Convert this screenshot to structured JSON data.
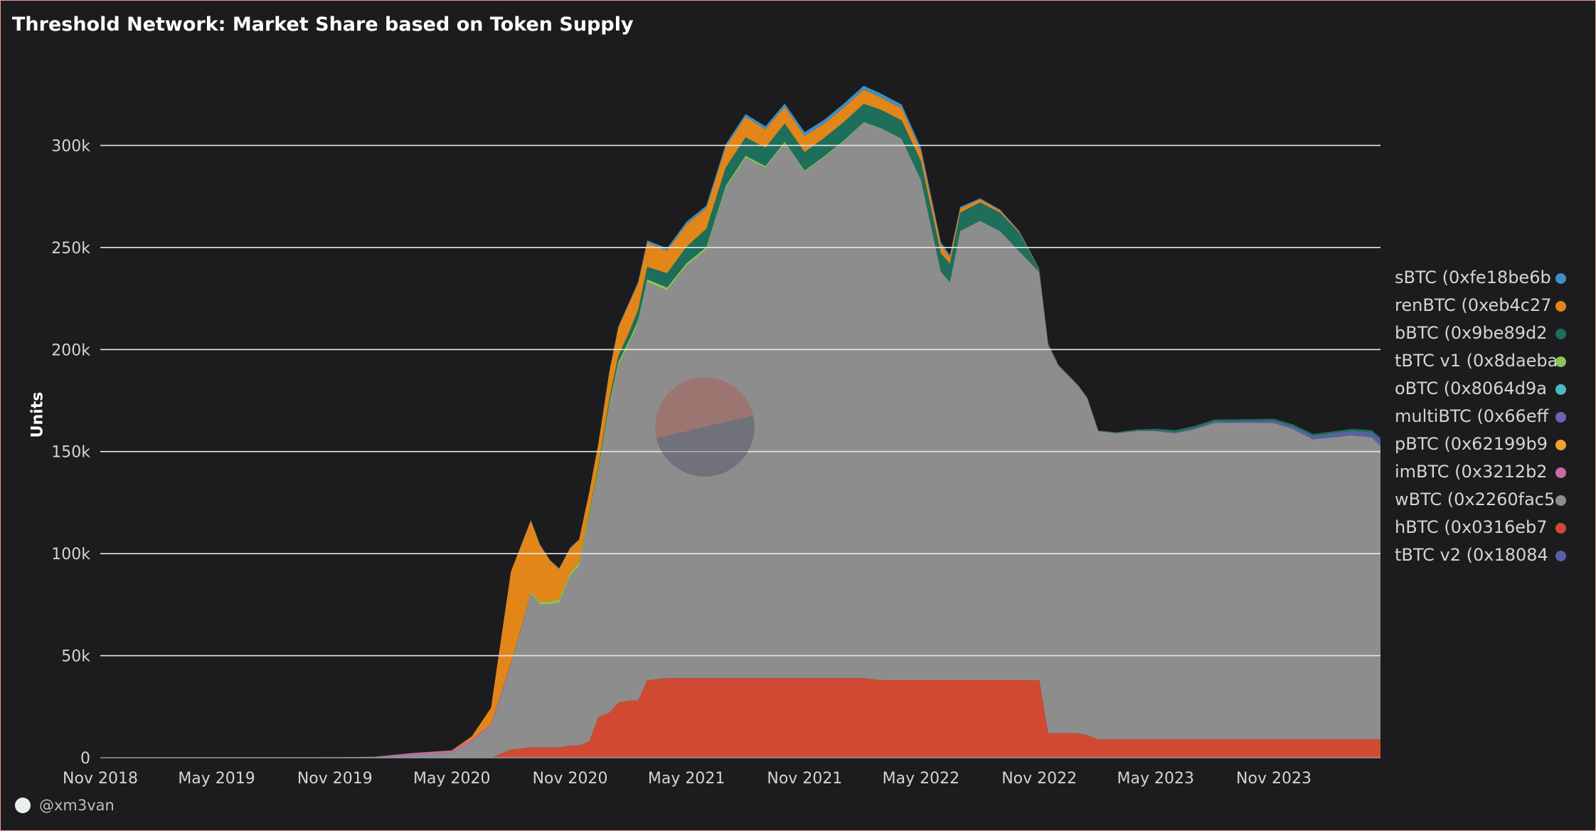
{
  "title": "Threshold Network: Market Share based on Token Supply",
  "attribution": "@xm3van",
  "colors": {
    "background": "#1c1c1f",
    "grid": "#e8e8e8",
    "axis_text": "#d4d4d4"
  },
  "chart_data": {
    "type": "area",
    "stacked": true,
    "title": "Threshold Network: Market Share based on Token Supply",
    "xlabel": "",
    "ylabel": "Units",
    "ylim": [
      0,
      350000
    ],
    "grid": true,
    "legend_position": "right",
    "x_ticks": [
      "Nov 2018",
      "May 2019",
      "Nov 2019",
      "May 2020",
      "Nov 2020",
      "May 2021",
      "Nov 2021",
      "May 2022",
      "Nov 2022",
      "May 2023",
      "Nov 2023"
    ],
    "y_ticks": [
      0,
      50000,
      100000,
      150000,
      200000,
      250000,
      300000
    ],
    "y_tick_labels": [
      "0",
      "50k",
      "100k",
      "150k",
      "200k",
      "250k",
      "300k"
    ],
    "x": [
      "2018-11-01",
      "2019-02-01",
      "2019-05-01",
      "2019-08-01",
      "2019-11-01",
      "2020-01-01",
      "2020-03-01",
      "2020-05-01",
      "2020-06-01",
      "2020-07-01",
      "2020-08-01",
      "2020-09-01",
      "2020-09-15",
      "2020-10-01",
      "2020-10-15",
      "2020-11-01",
      "2020-11-15",
      "2020-12-01",
      "2020-12-15",
      "2021-01-01",
      "2021-01-15",
      "2021-02-01",
      "2021-02-15",
      "2021-03-01",
      "2021-04-01",
      "2021-05-01",
      "2021-06-01",
      "2021-07-01",
      "2021-08-01",
      "2021-09-01",
      "2021-10-01",
      "2021-11-01",
      "2021-12-01",
      "2022-01-01",
      "2022-02-01",
      "2022-03-01",
      "2022-04-01",
      "2022-05-01",
      "2022-06-01",
      "2022-06-15",
      "2022-07-01",
      "2022-08-01",
      "2022-09-01",
      "2022-10-01",
      "2022-11-01",
      "2022-11-15",
      "2022-12-01",
      "2023-01-01",
      "2023-01-15",
      "2023-02-01",
      "2023-03-01",
      "2023-04-01",
      "2023-05-01",
      "2023-06-01",
      "2023-07-01",
      "2023-08-01",
      "2023-09-01",
      "2023-10-01",
      "2023-11-01",
      "2023-12-01",
      "2024-01-01",
      "2024-02-01",
      "2024-03-01",
      "2024-04-01",
      "2024-04-15"
    ],
    "series": [
      {
        "name": "sBTC (0xfe18be6b",
        "color": "#3d8fc4",
        "values": [
          0,
          0,
          0,
          0,
          0,
          0,
          0,
          0,
          0,
          0,
          0,
          300,
          300,
          300,
          300,
          300,
          300,
          300,
          400,
          500,
          500,
          600,
          700,
          1000,
          1200,
          1300,
          1300,
          1400,
          1400,
          1500,
          1700,
          1800,
          1900,
          2000,
          1900,
          1900,
          1800,
          1700,
          1400,
          1200,
          800,
          500,
          500,
          400,
          300,
          200,
          100,
          100,
          100,
          0,
          0,
          0,
          0,
          0,
          0,
          0,
          0,
          0,
          0,
          0,
          0,
          0,
          0,
          0,
          0
        ]
      },
      {
        "name": "renBTC (0xeb4c27",
        "color": "#e2861a",
        "values": [
          0,
          0,
          0,
          0,
          0,
          0,
          0,
          100,
          1500,
          8000,
          45000,
          35000,
          28000,
          20000,
          15000,
          12000,
          11000,
          10000,
          11000,
          13000,
          14000,
          14000,
          13000,
          12000,
          11000,
          11000,
          10000,
          10000,
          10000,
          9000,
          8000,
          8000,
          7000,
          7000,
          7000,
          6000,
          6000,
          5000,
          4000,
          3000,
          2000,
          1500,
          1000,
          500,
          300,
          200,
          100,
          100,
          0,
          0,
          0,
          0,
          0,
          0,
          0,
          0,
          0,
          0,
          0,
          0,
          0,
          0,
          0,
          0,
          0
        ]
      },
      {
        "name": "bBTC (0x9be89d2",
        "color": "#1e6e5c",
        "values": [
          0,
          0,
          0,
          0,
          0,
          0,
          0,
          0,
          0,
          0,
          0,
          0,
          0,
          0,
          0,
          0,
          0,
          500,
          1000,
          2000,
          3000,
          4000,
          5000,
          6000,
          7000,
          8000,
          9000,
          9000,
          9000,
          9000,
          9000,
          9000,
          9000,
          9000,
          9000,
          9000,
          9000,
          9000,
          9000,
          9000,
          9000,
          9000,
          9000,
          9000,
          1000,
          500,
          200,
          200,
          200,
          200,
          300,
          500,
          800,
          1000,
          1000,
          1000,
          1000,
          1000,
          1000,
          1000,
          1000,
          1000,
          1000,
          1000,
          1000
        ]
      },
      {
        "name": "tBTC v1 (0x8daeba",
        "color": "#8cc35a",
        "values": [
          0,
          0,
          0,
          0,
          0,
          0,
          0,
          0,
          0,
          0,
          0,
          1000,
          1200,
          1400,
          1500,
          1600,
          1700,
          1800,
          1800,
          1800,
          1800,
          1700,
          1600,
          1500,
          1400,
          1300,
          1200,
          1100,
          1000,
          900,
          800,
          700,
          600,
          500,
          400,
          300,
          250,
          200,
          150,
          100,
          100,
          100,
          100,
          100,
          100,
          100,
          100,
          100,
          100,
          100,
          100,
          100,
          100,
          100,
          100,
          100,
          100,
          100,
          100,
          100,
          100,
          100,
          100,
          100,
          100
        ]
      },
      {
        "name": "oBTC (0x8064d9a",
        "color": "#4ab8c1",
        "values": [
          0,
          0,
          0,
          0,
          0,
          0,
          0,
          0,
          0,
          0,
          0,
          0,
          0,
          0,
          0,
          0,
          0,
          0,
          0,
          0,
          0,
          0,
          0,
          0,
          0,
          0,
          0,
          0,
          0,
          0,
          0,
          0,
          0,
          0,
          0,
          0,
          0,
          0,
          0,
          0,
          0,
          0,
          0,
          0,
          0,
          0,
          0,
          0,
          0,
          0,
          0,
          0,
          0,
          0,
          0,
          0,
          0,
          0,
          0,
          0,
          0,
          0,
          0,
          0,
          0
        ]
      },
      {
        "name": "multiBTC (0x66eff",
        "color": "#6a63b8",
        "values": [
          0,
          0,
          0,
          0,
          0,
          0,
          0,
          0,
          0,
          0,
          0,
          0,
          0,
          0,
          0,
          0,
          0,
          0,
          0,
          0,
          0,
          0,
          0,
          0,
          0,
          0,
          0,
          0,
          0,
          0,
          0,
          0,
          0,
          0,
          0,
          0,
          0,
          0,
          0,
          0,
          0,
          0,
          0,
          0,
          0,
          0,
          0,
          0,
          0,
          0,
          0,
          0,
          0,
          0,
          0,
          0,
          0,
          0,
          0,
          0,
          0,
          0,
          0,
          0,
          0
        ]
      },
      {
        "name": "pBTC (0x62199b9",
        "color": "#f0a32a",
        "values": [
          0,
          0,
          0,
          0,
          0,
          0,
          0,
          0,
          0,
          0,
          0,
          0,
          0,
          0,
          0,
          0,
          0,
          0,
          0,
          0,
          0,
          0,
          0,
          0,
          0,
          0,
          0,
          0,
          0,
          0,
          0,
          0,
          0,
          0,
          0,
          0,
          0,
          0,
          0,
          0,
          0,
          0,
          0,
          0,
          0,
          0,
          0,
          0,
          0,
          0,
          0,
          0,
          0,
          0,
          0,
          0,
          0,
          0,
          0,
          0,
          0,
          0,
          0,
          0,
          0
        ]
      },
      {
        "name": "imBTC (0x3212b2",
        "color": "#c86aa8",
        "values": [
          0,
          0,
          0,
          0,
          0,
          0,
          800,
          1000,
          900,
          500,
          300,
          200,
          100,
          100,
          0,
          0,
          0,
          0,
          0,
          0,
          0,
          0,
          0,
          0,
          0,
          0,
          0,
          0,
          0,
          0,
          0,
          0,
          0,
          0,
          0,
          0,
          0,
          0,
          0,
          0,
          0,
          0,
          0,
          0,
          0,
          0,
          0,
          0,
          0,
          0,
          0,
          0,
          0,
          0,
          0,
          0,
          0,
          0,
          0,
          0,
          0,
          0,
          0,
          0,
          0
        ]
      },
      {
        "name": "wBTC (0x2260fac5",
        "color": "#8d8d8d",
        "values": [
          0,
          0,
          0,
          100,
          200,
          500,
          1500,
          2500,
          8000,
          16000,
          42000,
          75000,
          70000,
          70000,
          71000,
          83000,
          88000,
          110000,
          120000,
          150000,
          165000,
          175000,
          185000,
          195000,
          190000,
          202000,
          210000,
          240000,
          255000,
          250000,
          262000,
          248000,
          255000,
          263000,
          272000,
          270000,
          265000,
          245000,
          200000,
          195000,
          220000,
          225000,
          220000,
          210000,
          200000,
          190000,
          180000,
          170000,
          165000,
          151000,
          150000,
          151000,
          151000,
          150000,
          152000,
          155000,
          155000,
          155000,
          155000,
          152000,
          147000,
          148000,
          149000,
          148000,
          144000
        ]
      },
      {
        "name": "hBTC (0x0316eb7",
        "color": "#d04a33",
        "values": [
          0,
          0,
          0,
          0,
          0,
          0,
          0,
          0,
          0,
          0,
          4000,
          5000,
          5000,
          5000,
          5000,
          6000,
          6000,
          8000,
          20000,
          22000,
          27000,
          28000,
          28000,
          38000,
          39000,
          39000,
          39000,
          39000,
          39000,
          39000,
          39000,
          39000,
          39000,
          39000,
          39000,
          38000,
          38000,
          38000,
          38000,
          38000,
          38000,
          38000,
          38000,
          38000,
          38000,
          12000,
          12000,
          12000,
          11000,
          9000,
          9000,
          9000,
          9000,
          9000,
          9000,
          9000,
          9000,
          9000,
          9000,
          9000,
          9000,
          9000,
          9000,
          9000,
          9000
        ]
      },
      {
        "name": "tBTC v2 (0x18084",
        "color": "#5a5fa8",
        "values": [
          0,
          0,
          0,
          0,
          0,
          0,
          0,
          0,
          0,
          0,
          0,
          0,
          0,
          0,
          0,
          0,
          0,
          0,
          0,
          0,
          0,
          0,
          0,
          0,
          0,
          0,
          0,
          0,
          0,
          0,
          0,
          0,
          0,
          0,
          0,
          0,
          0,
          0,
          0,
          0,
          0,
          0,
          0,
          0,
          0,
          0,
          0,
          0,
          0,
          0,
          100,
          200,
          300,
          400,
          500,
          600,
          700,
          800,
          1000,
          1200,
          1500,
          1800,
          2000,
          2400,
          2800
        ]
      }
    ]
  }
}
